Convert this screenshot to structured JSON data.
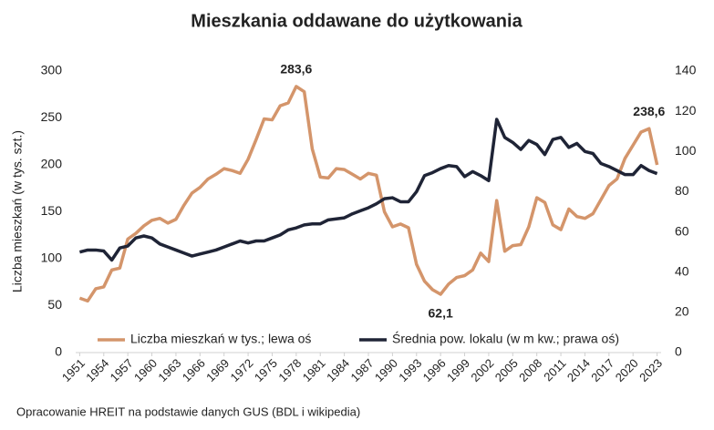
{
  "chart_data": {
    "type": "line",
    "title": "Mieszkania oddawane do użytkowania",
    "y_label": "Liczba mieszkań (w tys. szt.)",
    "source": "Opracowanie HREIT na podstawie danych GUS (BDL i wikipedia)",
    "x": [
      1951,
      1952,
      1953,
      1954,
      1955,
      1956,
      1957,
      1958,
      1959,
      1960,
      1961,
      1962,
      1963,
      1964,
      1965,
      1966,
      1967,
      1968,
      1969,
      1970,
      1971,
      1972,
      1973,
      1974,
      1975,
      1976,
      1977,
      1978,
      1979,
      1980,
      1981,
      1982,
      1983,
      1984,
      1985,
      1986,
      1987,
      1988,
      1989,
      1990,
      1991,
      1992,
      1993,
      1994,
      1995,
      1996,
      1997,
      1998,
      1999,
      2000,
      2001,
      2002,
      2003,
      2004,
      2005,
      2006,
      2007,
      2008,
      2009,
      2010,
      2011,
      2012,
      2013,
      2014,
      2015,
      2016,
      2017,
      2018,
      2019,
      2020,
      2021,
      2022,
      2023
    ],
    "xlim": [
      1950.5,
      2023.5
    ],
    "xticks": [
      1951,
      1954,
      1957,
      1960,
      1963,
      1966,
      1969,
      1972,
      1975,
      1978,
      1981,
      1984,
      1987,
      1990,
      1993,
      1996,
      1999,
      2002,
      2005,
      2008,
      2011,
      2014,
      2017,
      2020,
      2023
    ],
    "ylim": [
      0,
      300
    ],
    "yticks": [
      0,
      50,
      100,
      150,
      200,
      250,
      300
    ],
    "y2lim": [
      0,
      140
    ],
    "y2ticks": [
      0,
      20,
      40,
      60,
      80,
      100,
      120,
      140
    ],
    "grid": false,
    "legend": "bottom",
    "series": [
      {
        "name": "Liczba mieszkań w tys.; lewa oś",
        "color": "#d4956b",
        "axis": "y",
        "values": [
          58,
          55,
          68,
          70,
          88,
          90,
          121,
          127,
          135,
          141,
          143,
          138,
          142,
          157,
          170,
          176,
          185,
          190,
          196,
          194,
          191,
          206,
          227,
          249,
          248,
          263,
          266,
          283.6,
          278,
          217,
          187,
          186,
          196,
          195,
          190,
          185,
          191,
          189,
          150,
          134,
          137,
          133,
          94,
          76,
          67,
          62.1,
          73,
          80,
          82,
          88,
          106,
          97,
          162,
          108,
          114,
          115,
          134,
          165,
          160,
          136,
          131,
          153,
          145,
          143,
          148,
          163,
          178,
          185,
          207,
          221,
          235,
          238.6,
          200
        ]
      },
      {
        "name": "Średnia pow. lokalu (w m kw.; prawa oś)",
        "color": "#1f2436",
        "axis": "y2",
        "values": [
          50,
          51,
          51,
          50.5,
          46,
          52,
          53,
          57,
          58,
          57,
          54,
          52.5,
          51,
          49.5,
          48,
          49,
          50,
          51,
          52.5,
          54,
          55.5,
          54.5,
          55.5,
          55.5,
          57,
          58.5,
          61,
          62,
          63.5,
          64,
          64,
          66,
          66.5,
          67,
          69,
          70.5,
          72,
          74,
          76.5,
          77,
          75,
          75,
          80,
          88,
          89.5,
          91.5,
          93,
          92.5,
          87.5,
          90,
          88,
          85.5,
          116,
          107,
          104.5,
          101,
          105.5,
          103.5,
          98.5,
          106,
          107,
          102,
          104,
          100,
          99,
          94,
          92.5,
          90.5,
          88.5,
          88.5,
          93,
          90.5,
          89
        ]
      }
    ],
    "annotations": [
      {
        "text": "283,6",
        "x": 1978,
        "y": 283.6,
        "position": "above"
      },
      {
        "text": "62,1",
        "x": 1996,
        "y": 62.1,
        "position": "below"
      },
      {
        "text": "238,6",
        "x": 2022,
        "y": 238.6,
        "position": "above"
      }
    ]
  }
}
